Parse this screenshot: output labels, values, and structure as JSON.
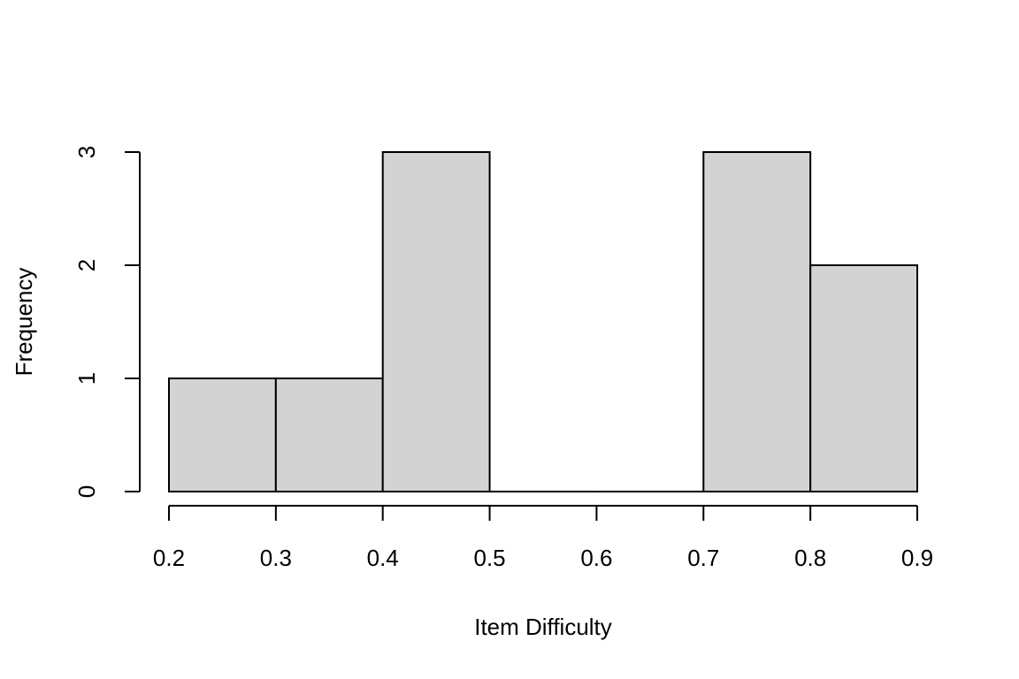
{
  "chart_data": {
    "type": "bar",
    "title": "",
    "xlabel": "Item Difficulty",
    "ylabel": "Frequency",
    "bins": [
      {
        "start": 0.2,
        "end": 0.3,
        "count": 1
      },
      {
        "start": 0.3,
        "end": 0.4,
        "count": 1
      },
      {
        "start": 0.4,
        "end": 0.5,
        "count": 3
      },
      {
        "start": 0.5,
        "end": 0.6,
        "count": 0
      },
      {
        "start": 0.6,
        "end": 0.7,
        "count": 0
      },
      {
        "start": 0.7,
        "end": 0.8,
        "count": 3
      },
      {
        "start": 0.8,
        "end": 0.9,
        "count": 2
      }
    ],
    "xlim": [
      0.2,
      0.9
    ],
    "ylim": [
      0,
      3
    ],
    "x_ticks": [
      "0.2",
      "0.3",
      "0.4",
      "0.5",
      "0.6",
      "0.7",
      "0.8",
      "0.9"
    ],
    "y_ticks": [
      "0",
      "1",
      "2",
      "3"
    ],
    "grid": false,
    "bar_color": "#d3d3d3",
    "border_color": "#000000"
  }
}
